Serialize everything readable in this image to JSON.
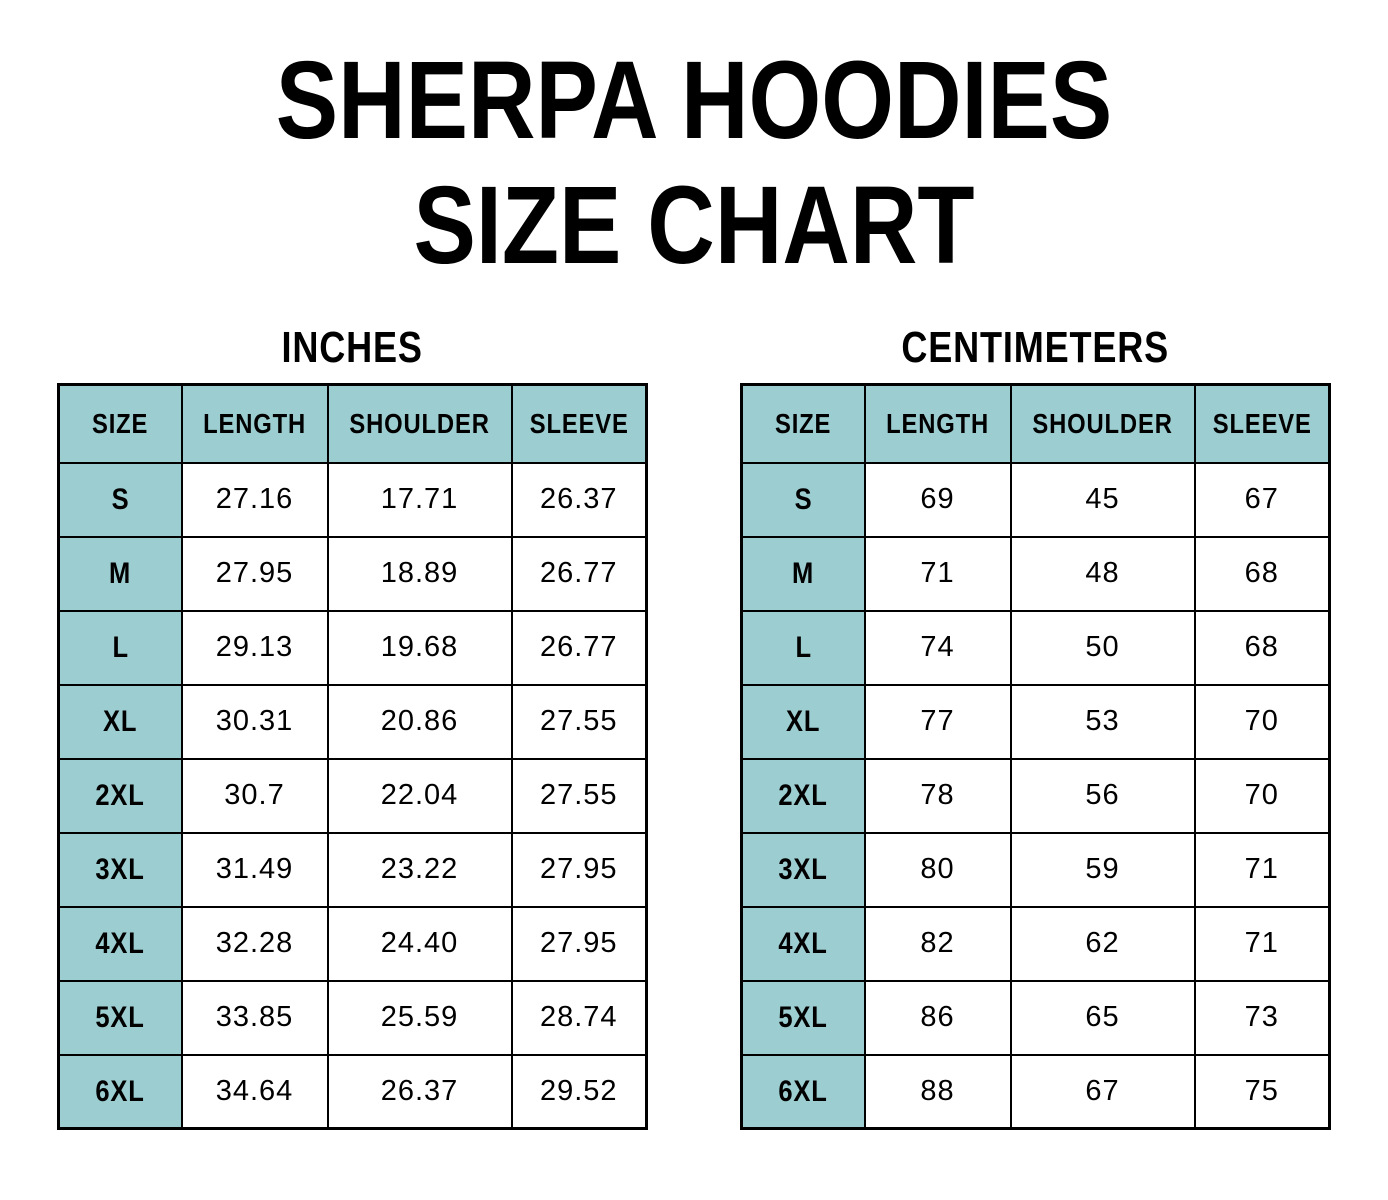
{
  "page": {
    "title_line1": "SHERPA HOODIES",
    "title_line2": "SIZE CHART"
  },
  "colors": {
    "header_fill": "#9BCDD1",
    "border": "#000000",
    "background": "#FFFFFF",
    "text": "#000000"
  },
  "tables": [
    {
      "heading": "INCHES",
      "columns": [
        "SIZE",
        "LENGTH",
        "SHOULDER",
        "SLEEVE"
      ],
      "rows": [
        [
          "S",
          "27.16",
          "17.71",
          "26.37"
        ],
        [
          "M",
          "27.95",
          "18.89",
          "26.77"
        ],
        [
          "L",
          "29.13",
          "19.68",
          "26.77"
        ],
        [
          "XL",
          "30.31",
          "20.86",
          "27.55"
        ],
        [
          "2XL",
          "30.7",
          "22.04",
          "27.55"
        ],
        [
          "3XL",
          "31.49",
          "23.22",
          "27.95"
        ],
        [
          "4XL",
          "32.28",
          "24.40",
          "27.95"
        ],
        [
          "5XL",
          "33.85",
          "25.59",
          "28.74"
        ],
        [
          "6XL",
          "34.64",
          "26.37",
          "29.52"
        ]
      ]
    },
    {
      "heading": "CENTIMETERS",
      "columns": [
        "SIZE",
        "LENGTH",
        "SHOULDER",
        "SLEEVE"
      ],
      "rows": [
        [
          "S",
          "69",
          "45",
          "67"
        ],
        [
          "M",
          "71",
          "48",
          "68"
        ],
        [
          "L",
          "74",
          "50",
          "68"
        ],
        [
          "XL",
          "77",
          "53",
          "70"
        ],
        [
          "2XL",
          "78",
          "56",
          "70"
        ],
        [
          "3XL",
          "80",
          "59",
          "71"
        ],
        [
          "4XL",
          "82",
          "62",
          "71"
        ],
        [
          "5XL",
          "86",
          "65",
          "73"
        ],
        [
          "6XL",
          "88",
          "67",
          "75"
        ]
      ]
    }
  ],
  "chart_data": [
    {
      "type": "table",
      "title": "INCHES",
      "columns": [
        "SIZE",
        "LENGTH",
        "SHOULDER",
        "SLEEVE"
      ],
      "rows": [
        [
          "S",
          27.16,
          17.71,
          26.37
        ],
        [
          "M",
          27.95,
          18.89,
          26.77
        ],
        [
          "L",
          29.13,
          19.68,
          26.77
        ],
        [
          "XL",
          30.31,
          20.86,
          27.55
        ],
        [
          "2XL",
          30.7,
          22.04,
          27.55
        ],
        [
          "3XL",
          31.49,
          23.22,
          27.95
        ],
        [
          "4XL",
          32.28,
          24.4,
          27.95
        ],
        [
          "5XL",
          33.85,
          25.59,
          28.74
        ],
        [
          "6XL",
          34.64,
          26.37,
          29.52
        ]
      ]
    },
    {
      "type": "table",
      "title": "CENTIMETERS",
      "columns": [
        "SIZE",
        "LENGTH",
        "SHOULDER",
        "SLEEVE"
      ],
      "rows": [
        [
          "S",
          69,
          45,
          67
        ],
        [
          "M",
          71,
          48,
          68
        ],
        [
          "L",
          74,
          50,
          68
        ],
        [
          "XL",
          77,
          53,
          70
        ],
        [
          "2XL",
          78,
          56,
          70
        ],
        [
          "3XL",
          80,
          59,
          71
        ],
        [
          "4XL",
          82,
          62,
          71
        ],
        [
          "5XL",
          86,
          65,
          73
        ],
        [
          "6XL",
          88,
          67,
          75
        ]
      ]
    }
  ]
}
